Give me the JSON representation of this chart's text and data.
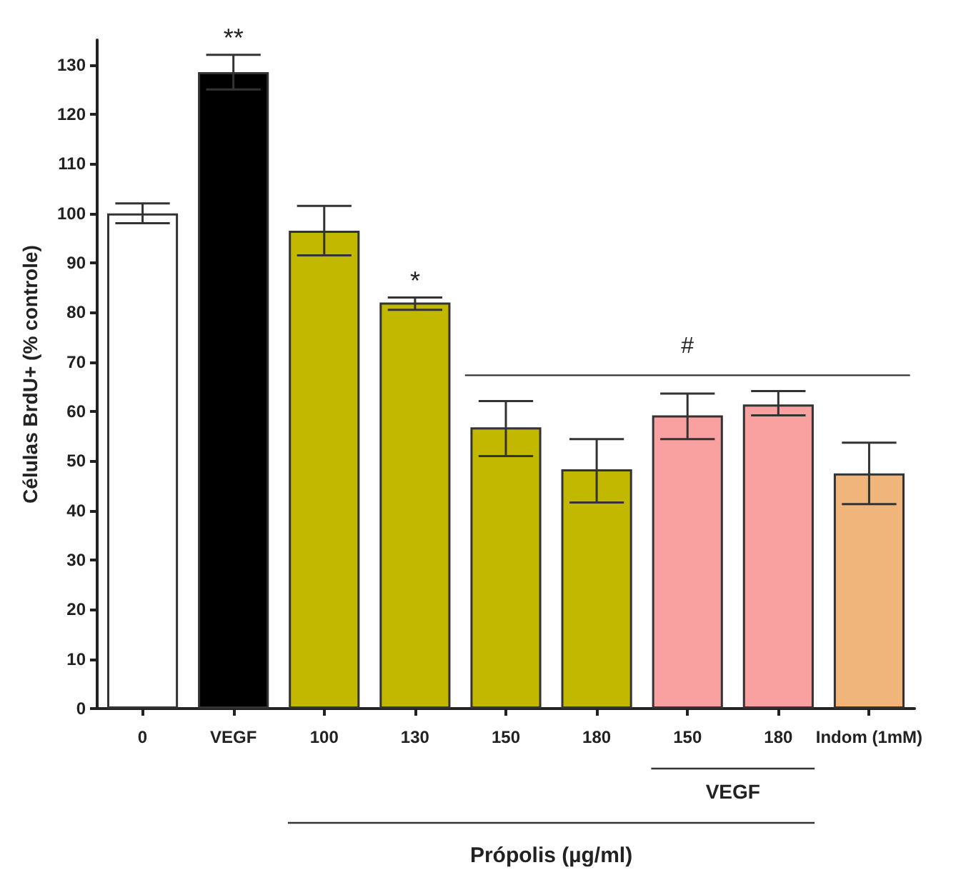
{
  "chart_data": {
    "type": "bar",
    "ylabel": "Células BrdU+ (% controle)",
    "xlabel": "Própolis (µg/ml)",
    "categories": [
      "0",
      "VEGF",
      "100",
      "130",
      "150",
      "180",
      "150",
      "180",
      "Indom (1mM)"
    ],
    "values": [
      100,
      128.5,
      96.5,
      82,
      56.8,
      48.3,
      59.2,
      61.4,
      47.5
    ],
    "errors": [
      [
        98,
        102
      ],
      [
        125,
        132
      ],
      [
        91.5,
        101.5
      ],
      [
        80.5,
        83
      ],
      [
        51,
        62.1
      ],
      [
        41.6,
        54.4
      ],
      [
        54.4,
        63.6
      ],
      [
        59.2,
        64.1
      ],
      [
        41.3,
        53.7
      ]
    ],
    "colors": [
      "#ffffff",
      "#000000",
      "#c2b800",
      "#c2b800",
      "#c2b800",
      "#c2b800",
      "#f9a0a0",
      "#f9a0a0",
      "#efb57a"
    ],
    "ylim": [
      0,
      135
    ],
    "yticks": [
      0,
      10,
      20,
      30,
      40,
      50,
      60,
      70,
      80,
      90,
      100,
      110,
      120,
      130
    ],
    "grid": false,
    "annotations": [
      {
        "text": "**",
        "x": "VEGF",
        "y": 132
      },
      {
        "text": "*",
        "x": "130",
        "y": 83
      },
      "#",
      "VEGF"
    ]
  }
}
